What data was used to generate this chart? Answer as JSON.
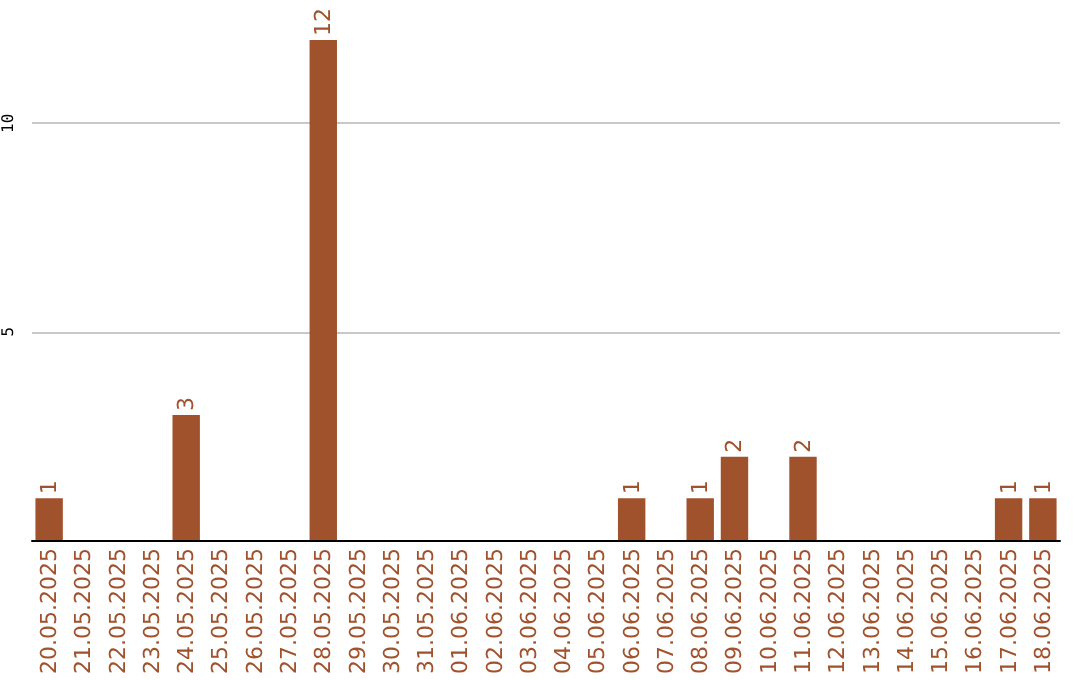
{
  "chart_data": {
    "type": "bar",
    "categories": [
      "20.05.2025",
      "21.05.2025",
      "22.05.2025",
      "23.05.2025",
      "24.05.2025",
      "25.05.2025",
      "26.05.2025",
      "27.05.2025",
      "28.05.2025",
      "29.05.2025",
      "30.05.2025",
      "31.05.2025",
      "01.06.2025",
      "02.06.2025",
      "03.06.2025",
      "04.06.2025",
      "05.06.2025",
      "06.06.2025",
      "07.06.2025",
      "08.06.2025",
      "09.06.2025",
      "10.06.2025",
      "11.06.2025",
      "12.06.2025",
      "13.06.2025",
      "14.06.2025",
      "15.06.2025",
      "16.06.2025",
      "17.06.2025",
      "18.06.2025"
    ],
    "values": [
      1,
      0,
      0,
      0,
      3,
      0,
      0,
      0,
      12,
      0,
      0,
      0,
      0,
      0,
      0,
      0,
      0,
      1,
      0,
      1,
      2,
      0,
      2,
      0,
      0,
      0,
      0,
      0,
      1,
      1
    ],
    "value_labels": [
      "1",
      null,
      null,
      null,
      "3",
      null,
      null,
      null,
      "12",
      null,
      null,
      null,
      null,
      null,
      null,
      null,
      null,
      "1",
      null,
      "1",
      "2",
      null,
      "2",
      null,
      null,
      null,
      null,
      null,
      "1",
      "1"
    ],
    "color": "#a0522d",
    "ylim": [
      0,
      12
    ],
    "yticks": [
      5,
      10
    ],
    "grid": "y"
  }
}
